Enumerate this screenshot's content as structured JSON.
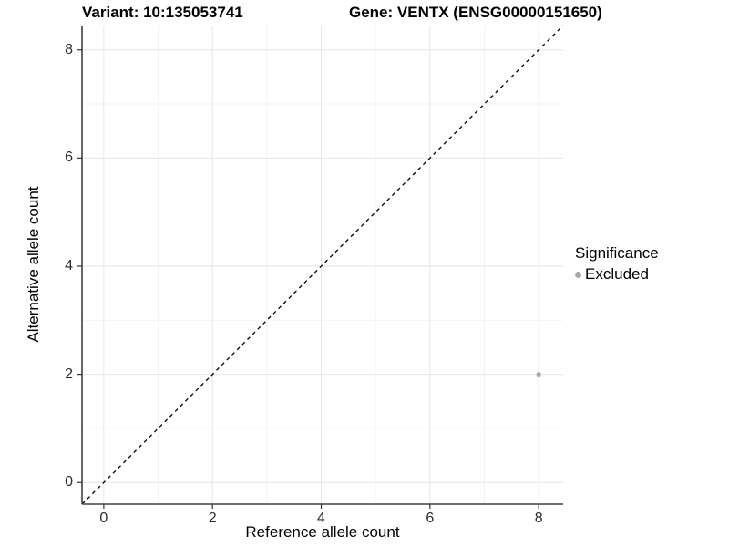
{
  "chart_data": {
    "type": "scatter",
    "title_left": "Variant: 10:135053741",
    "title_right": "Gene: VENTX (ENSG00000151650)",
    "xlabel": "Reference allele count",
    "ylabel": "Alternative allele count",
    "xlim": [
      -0.4,
      8.45
    ],
    "ylim": [
      -0.4,
      8.45
    ],
    "x_ticks": [
      0,
      2,
      4,
      6,
      8
    ],
    "y_ticks": [
      0,
      2,
      4,
      6,
      8
    ],
    "x_minor_ticks": [
      1,
      3,
      5,
      7
    ],
    "y_minor_ticks": [
      1,
      3,
      5,
      7
    ],
    "grid": true,
    "legend_position": "right",
    "series": [
      {
        "name": "Excluded",
        "color": "#aaaaaa",
        "marker": "circle",
        "points": [
          {
            "x": 8,
            "y": 2
          }
        ]
      }
    ],
    "reference_line": {
      "kind": "identity",
      "dashed": true,
      "color": "#000000"
    },
    "legend": {
      "title": "Significance",
      "entries": [
        {
          "label": "Excluded",
          "color": "#aaaaaa"
        }
      ]
    }
  },
  "colors": {
    "background": "#ffffff",
    "axis_line": "#404040",
    "tick_mark": "#333333",
    "tick_label": "#2b2b2b",
    "grid_major": "#e6e6e6",
    "grid_minor": "#f3f3f3"
  }
}
